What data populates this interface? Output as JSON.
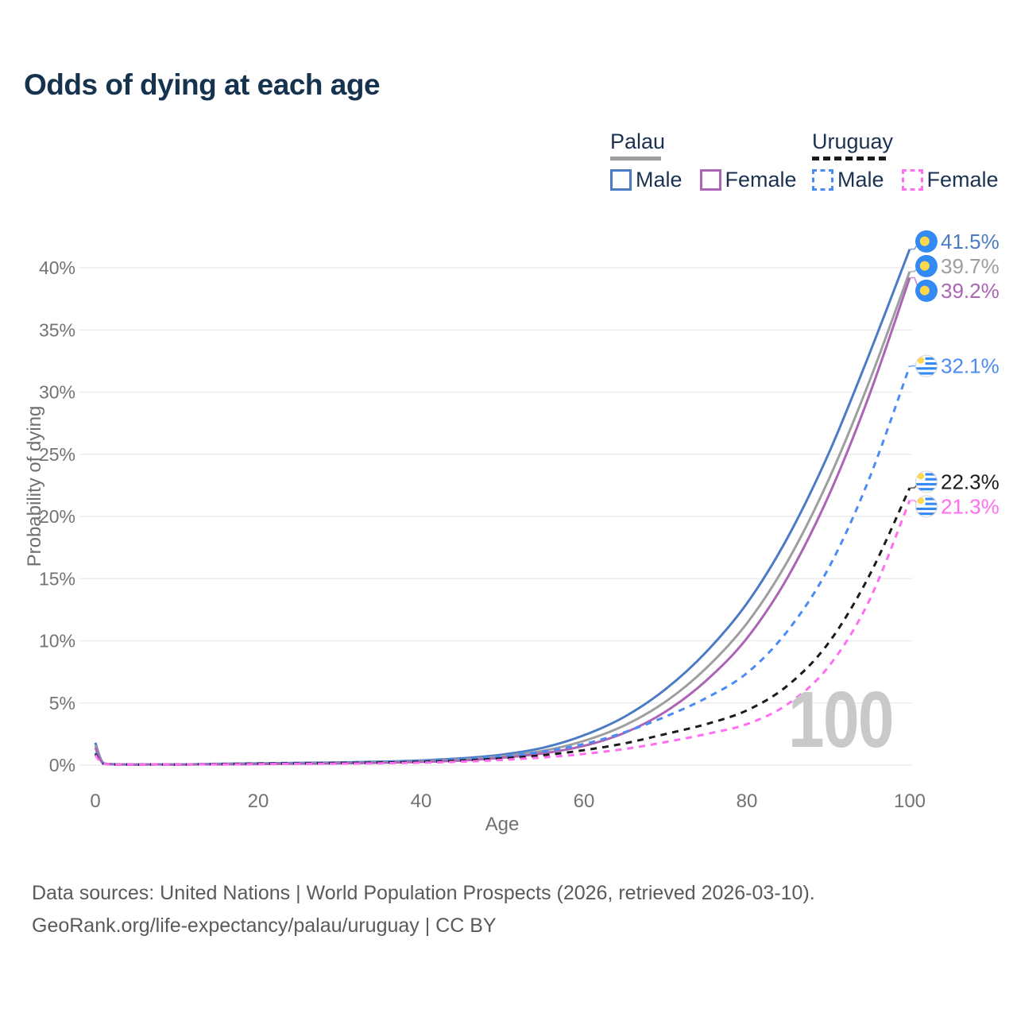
{
  "title": "Odds of dying at each age",
  "legend": {
    "palau": {
      "label": "Palau",
      "male": "Male",
      "female": "Female"
    },
    "uruguay": {
      "label": "Uruguay",
      "male": "Male",
      "female": "Female"
    }
  },
  "watermark": "100",
  "footer": {
    "line1": "Data sources: United Nations | World Population Prospects (2026, retrieved 2026-03-10).",
    "line2": "GeoRank.org/life-expectancy/palau/uruguay | CC BY"
  },
  "colors": {
    "palau_male": "#4b7bc4",
    "palau_both": "#9e9e9e",
    "palau_female": "#ac64b4",
    "uruguay_male": "#4b8bf4",
    "uruguay_both": "#1b1b1b",
    "uruguay_female": "#ff6ef0",
    "title_text": "#15324f",
    "tick_text": "#737373",
    "grid": "#ececec",
    "watermark": "#c9c9c9",
    "flag_blue": "#338AF3",
    "flag_yellow": "#FFD84D"
  },
  "chart_data": {
    "type": "line",
    "title": "Odds of dying at each age",
    "xlabel": "Age",
    "ylabel": "Probability of dying",
    "xlim": [
      0,
      100
    ],
    "ylim": [
      0,
      43
    ],
    "x_ticks": [
      0,
      20,
      40,
      60,
      80,
      100
    ],
    "y_ticks": [
      0,
      5,
      10,
      15,
      20,
      25,
      30,
      35,
      40
    ],
    "y_tick_suffix": "%",
    "grid": "horizontal",
    "legend_position": "top-right",
    "x": [
      0,
      1,
      3,
      5,
      10,
      15,
      20,
      25,
      30,
      35,
      40,
      45,
      50,
      55,
      60,
      65,
      70,
      75,
      80,
      85,
      90,
      95,
      100
    ],
    "series": [
      {
        "id": "palau-male",
        "name": "Palau Male",
        "country": "Palau",
        "sex": "Male",
        "line_style": "solid",
        "color_key": "palau_male",
        "flag": "palau",
        "end_label": "41.5%",
        "values": [
          1.8,
          0.15,
          0.06,
          0.05,
          0.05,
          0.1,
          0.15,
          0.18,
          0.22,
          0.28,
          0.38,
          0.55,
          0.85,
          1.4,
          2.4,
          3.9,
          6.1,
          9.1,
          13,
          18.3,
          25,
          33,
          41.5
        ]
      },
      {
        "id": "palau-both",
        "name": "Palau Both sexes",
        "country": "Palau",
        "sex": "Both",
        "line_style": "solid",
        "color_key": "palau_both",
        "flag": "palau",
        "end_label": "39.7%",
        "values": [
          1.6,
          0.13,
          0.05,
          0.045,
          0.045,
          0.08,
          0.12,
          0.15,
          0.18,
          0.23,
          0.32,
          0.46,
          0.72,
          1.15,
          1.95,
          3.2,
          5.1,
          7.8,
          11.4,
          16.4,
          22.9,
          30.8,
          39.7
        ]
      },
      {
        "id": "palau-female",
        "name": "Palau Female",
        "country": "Palau",
        "sex": "Female",
        "line_style": "solid",
        "color_key": "palau_female",
        "flag": "palau",
        "end_label": "39.2%",
        "values": [
          1.4,
          0.11,
          0.05,
          0.04,
          0.04,
          0.06,
          0.09,
          0.12,
          0.15,
          0.19,
          0.26,
          0.38,
          0.6,
          0.95,
          1.55,
          2.6,
          4.3,
          6.8,
          10.2,
          15.1,
          21.6,
          29.7,
          39.2
        ]
      },
      {
        "id": "uruguay-male",
        "name": "Uruguay Male",
        "country": "Uruguay",
        "sex": "Male",
        "line_style": "dashed",
        "color_key": "uruguay_male",
        "flag": "uruguay",
        "end_label": "32.1%",
        "values": [
          1.0,
          0.12,
          0.05,
          0.04,
          0.05,
          0.09,
          0.14,
          0.17,
          0.2,
          0.25,
          0.33,
          0.47,
          0.7,
          1.1,
          1.7,
          2.65,
          3.9,
          5.4,
          7.4,
          10.8,
          15.8,
          23.0,
          32.1
        ]
      },
      {
        "id": "uruguay-both",
        "name": "Uruguay Both sexes",
        "country": "Uruguay",
        "sex": "Both",
        "line_style": "dashed",
        "color_key": "uruguay_both",
        "flag": "uruguay",
        "end_label": "22.3%",
        "values": [
          0.9,
          0.11,
          0.045,
          0.04,
          0.045,
          0.08,
          0.12,
          0.14,
          0.17,
          0.21,
          0.27,
          0.37,
          0.55,
          0.8,
          1.2,
          1.75,
          2.5,
          3.3,
          4.4,
          6.4,
          9.8,
          15.2,
          22.3
        ]
      },
      {
        "id": "uruguay-female",
        "name": "Uruguay Female",
        "country": "Uruguay",
        "sex": "Female",
        "line_style": "dashed",
        "color_key": "uruguay_female",
        "flag": "uruguay",
        "end_label": "21.3%",
        "values": [
          0.8,
          0.1,
          0.04,
          0.035,
          0.04,
          0.06,
          0.08,
          0.1,
          0.12,
          0.15,
          0.2,
          0.28,
          0.42,
          0.62,
          0.9,
          1.3,
          1.85,
          2.5,
          3.3,
          4.9,
          7.9,
          13.2,
          21.3
        ]
      }
    ]
  }
}
